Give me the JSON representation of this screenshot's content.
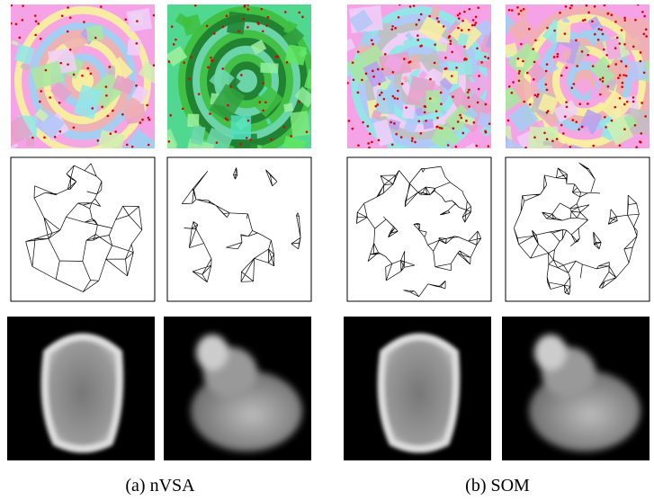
{
  "figure": {
    "subfigures": [
      {
        "caption": "(a) nVSA"
      },
      {
        "caption": "(b) SOM"
      }
    ]
  }
}
